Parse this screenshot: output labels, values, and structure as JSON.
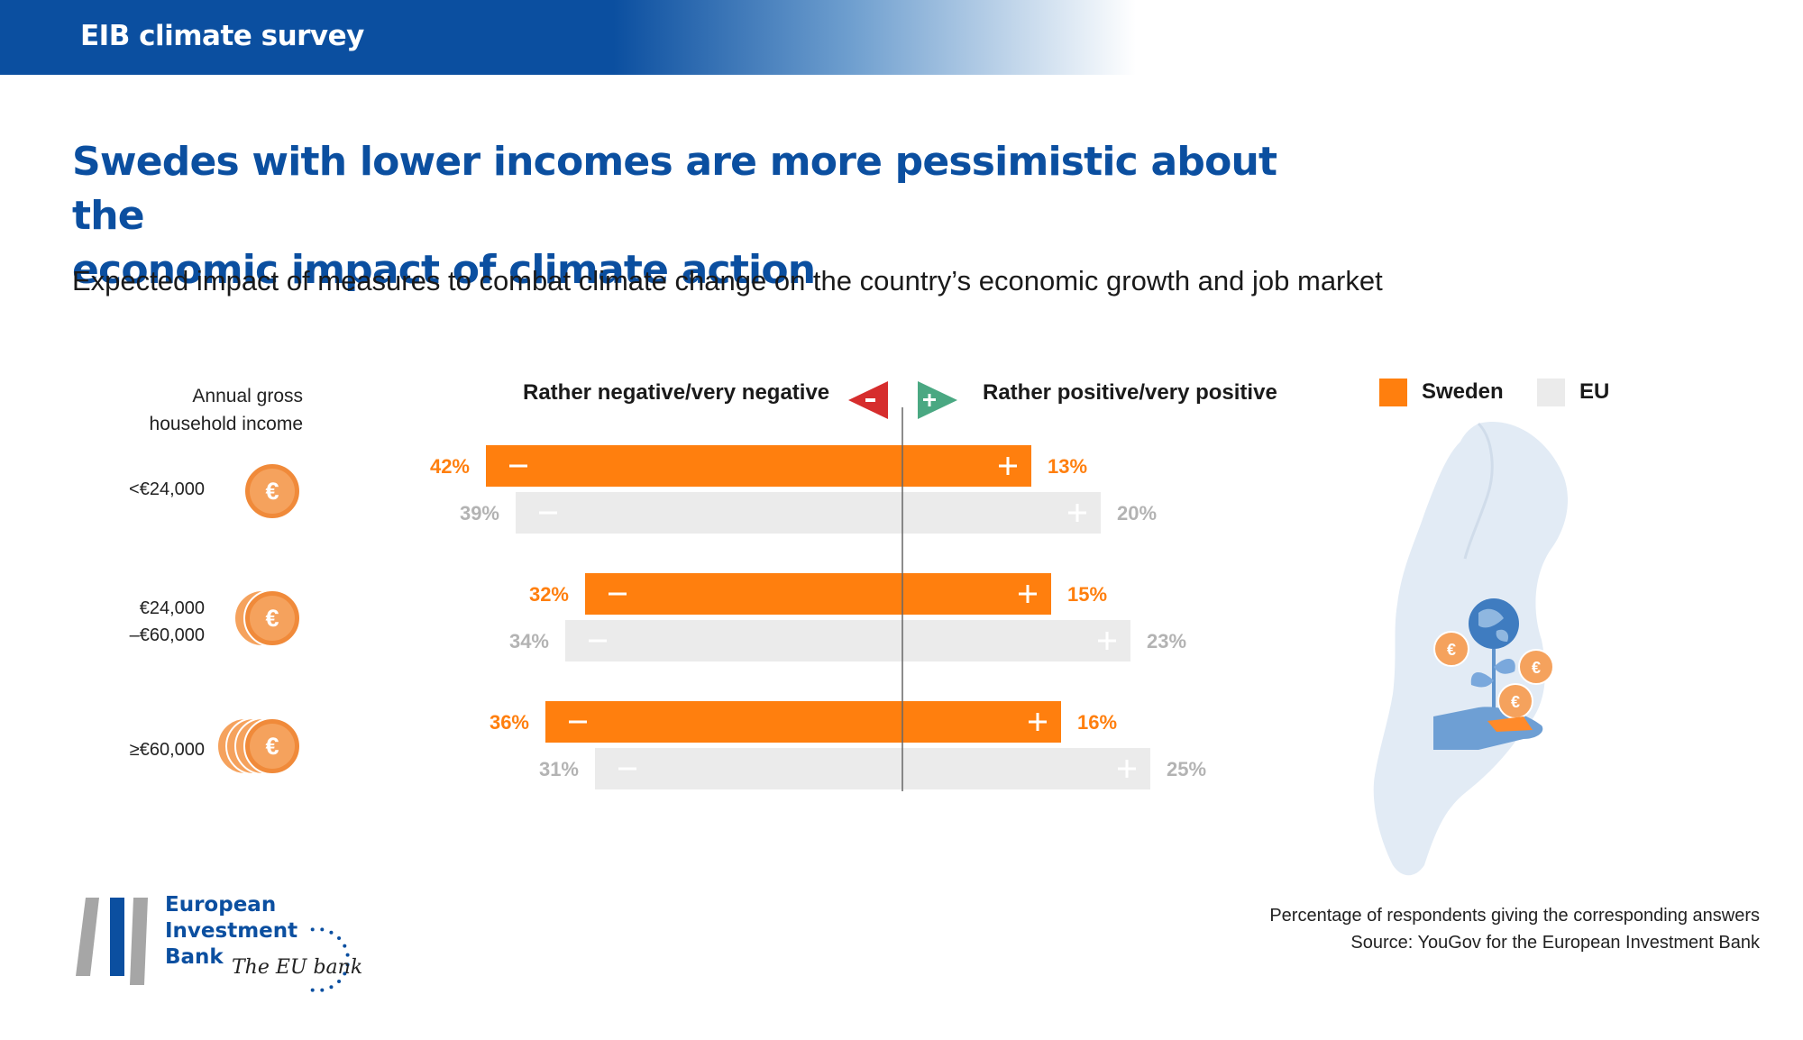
{
  "header": {
    "title": "EIB climate survey"
  },
  "title_line1": "Swedes with lower incomes are more pessimistic about the",
  "title_line2": "economic impact of climate action",
  "subtitle": "Expected impact of measures to combat climate change on the country’s economic growth and job market",
  "income_header_line1": "Annual gross",
  "income_header_line2": "household income",
  "coin_symbol": "€",
  "negative_heading": "Rather negative/very negative",
  "positive_heading": "Rather positive/very positive",
  "legend": {
    "sweden": "Sweden",
    "eu": "EU"
  },
  "colors": {
    "sweden": "#ff7f0e",
    "eu": "#ebebeb",
    "brand": "#0b4fa0",
    "negative_arrow": "#d62d2d",
    "positive_arrow": "#4aa882"
  },
  "footnote_line1": "Percentage of respondents giving the corresponding answers",
  "footnote_line2": "Source: YouGov for the European Investment Bank",
  "logo": {
    "line1": "European",
    "line2": "Investment",
    "line3": "Bank",
    "tagline": "The EU bank"
  },
  "chart_data": {
    "type": "bar",
    "categories": [
      "<€24,000",
      "€24,000 –€60,000",
      "≥€60,000"
    ],
    "category_lines": [
      [
        "<€24,000"
      ],
      [
        "€24,000",
        "–€60,000"
      ],
      [
        "≥€60,000"
      ]
    ],
    "series": [
      {
        "name": "Sweden",
        "negative": [
          42,
          32,
          36
        ],
        "positive": [
          13,
          15,
          16
        ]
      },
      {
        "name": "EU",
        "negative": [
          39,
          34,
          31
        ],
        "positive": [
          20,
          23,
          25
        ]
      }
    ],
    "unit": "%",
    "legend_position": "top-right"
  }
}
